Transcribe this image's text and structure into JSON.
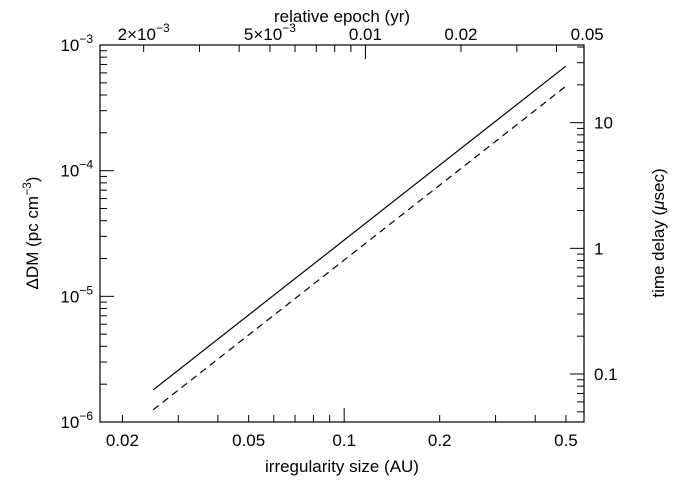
{
  "chart_data": {
    "type": "line",
    "xlabel": "irregularity size (AU)",
    "ylabel_left": {
      "text": "ΔDM (pc cm",
      "sup": "−3",
      "suffix": ")"
    },
    "ylabel_right": {
      "prefix": "time delay (",
      "greek": "μ",
      "suffix": "sec)"
    },
    "x2label": "relative epoch (yr)",
    "x_scale": "log",
    "y_scale": "log",
    "xlim": [
      0.017,
      0.57
    ],
    "ylim": [
      1e-06,
      0.001
    ],
    "x_ticks": [
      {
        "value": 0.02,
        "label": "0.02"
      },
      {
        "value": 0.05,
        "label": "0.05"
      },
      {
        "value": 0.1,
        "label": "0.1"
      },
      {
        "value": 0.2,
        "label": "0.2"
      },
      {
        "value": 0.5,
        "label": "0.5"
      }
    ],
    "y_ticks": [
      {
        "value": 1e-06,
        "base": "10",
        "exp": "−6"
      },
      {
        "value": 1e-05,
        "base": "10",
        "exp": "−5"
      },
      {
        "value": 0.0001,
        "base": "10",
        "exp": "−4"
      },
      {
        "value": 0.001,
        "base": "10",
        "exp": "−3"
      }
    ],
    "x2_ticks": [
      {
        "value": 0.002,
        "mant": "2×10",
        "exp": "−3"
      },
      {
        "value": 0.005,
        "mant": "5×10",
        "exp": "−3"
      },
      {
        "value": 0.01,
        "label": "0.01"
      },
      {
        "value": 0.02,
        "label": "0.02"
      },
      {
        "value": 0.05,
        "label": "0.05"
      }
    ],
    "x2_per_x": 0.0857,
    "y2_ticks": [
      {
        "value": 0.1,
        "label": "0.1"
      },
      {
        "value": 1,
        "label": "1"
      },
      {
        "value": 10,
        "label": "10"
      }
    ],
    "y2_per_y": 41500,
    "series": [
      {
        "style": "solid",
        "x": [
          0.025,
          0.5
        ],
        "y": [
          1.8e-06,
          0.00068
        ]
      },
      {
        "style": "dashed",
        "x": [
          0.025,
          0.5
        ],
        "y": [
          1.25e-06,
          0.00047
        ]
      }
    ]
  }
}
